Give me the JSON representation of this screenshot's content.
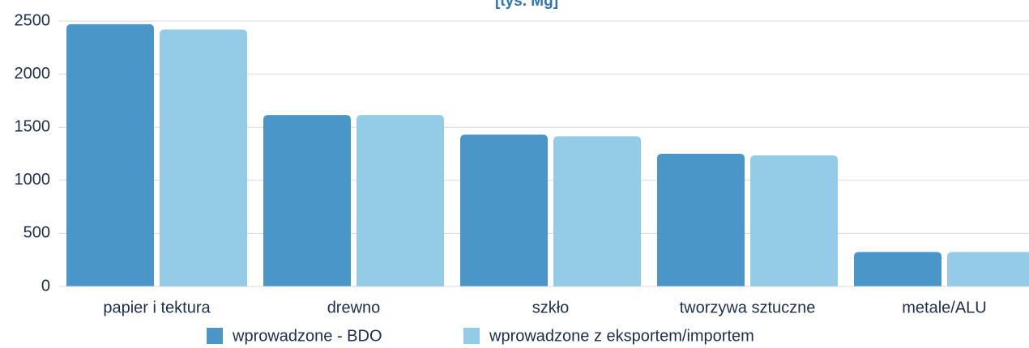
{
  "chart_data": {
    "type": "bar",
    "title": "[tys. Mg]",
    "categories": [
      "papier i tektura",
      "drewno",
      "szkło",
      "tworzywa sztuczne",
      "metale/ALU"
    ],
    "series": [
      {
        "name": "wprowadzone - BDO",
        "color": "#4a96c9",
        "values": [
          2470,
          1615,
          1430,
          1250,
          325
        ]
      },
      {
        "name": "wprowadzone z eksportem/importem",
        "color": "#94cce8",
        "values": [
          2420,
          1615,
          1415,
          1235,
          325
        ]
      }
    ],
    "ylim": [
      0,
      2500
    ],
    "yticks": [
      0,
      500,
      1000,
      1500,
      2000,
      2500
    ],
    "grid": true,
    "legend": "bottom"
  }
}
